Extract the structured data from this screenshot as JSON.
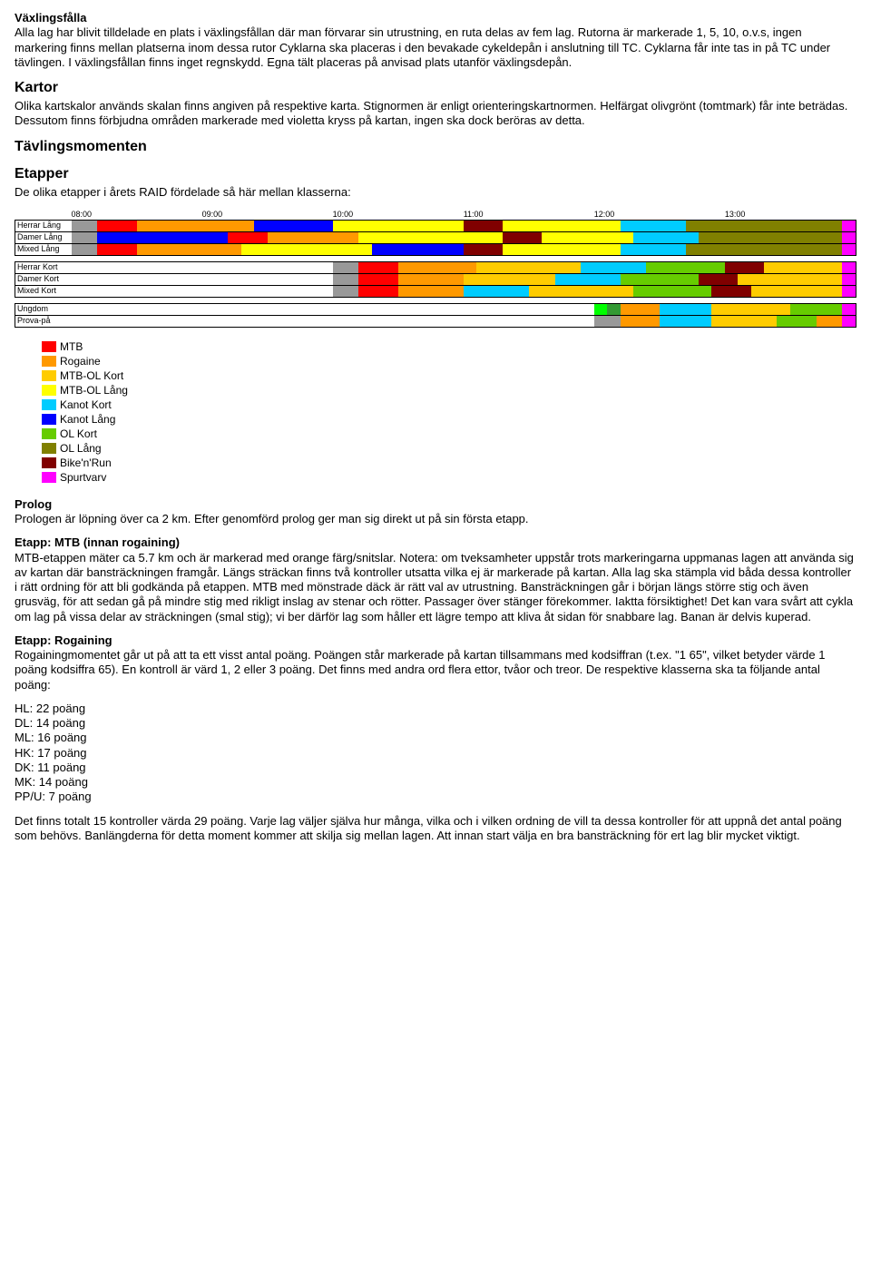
{
  "colors": {
    "mtb": "#ff0000",
    "rogaine": "#ff9900",
    "mtb_ol_kort": "#ffcc00",
    "mtb_ol_lang": "#ffff00",
    "kanot_kort": "#00ccff",
    "kanot_lang": "#0000ff",
    "ol_kort": "#66cc00",
    "ol_lang": "#808000",
    "bikenrun": "#800000",
    "spurtvarv": "#ff00ff",
    "prolog": "#999999",
    "empty": "#ffffff",
    "bright_green": "#00ff00",
    "ungdom_green": "#339933"
  },
  "sec_vaxling": {
    "title": "Växlingsfålla",
    "body": "Alla lag har blivit tilldelade en plats i växlingsfållan där man förvarar sin utrustning, en ruta delas av fem lag. Rutorna är markerade 1, 5, 10, o.v.s, ingen markering finns mellan platserna inom dessa rutor Cyklarna ska placeras i den bevakade cykeldepån i anslutning till TC. Cyklarna får inte tas in på TC under tävlingen. I växlingsfållan finns inget regnskydd. Egna tält placeras på anvisad plats utanför växlingsdepån."
  },
  "sec_kartor": {
    "title": "Kartor",
    "body": "Olika kartskalor används skalan finns angiven på respektive karta. Stignormen är enligt orienteringskartnormen. Helfärgat olivgrönt (tomtmark) får inte beträdas. Dessutom finns förbjudna områden markerade med violetta kryss på kartan, ingen ska dock beröras av detta."
  },
  "sec_moment": {
    "title": "Tävlingsmomenten"
  },
  "sec_etapper": {
    "title": "Etapper",
    "intro": "De olika etapper i årets RAID fördelade så här mellan klasserna:"
  },
  "timeline": {
    "header_slots": 60,
    "tick_labels": [
      "08:00",
      "09:00",
      "10:00",
      "11:00",
      "12:00",
      "13:00"
    ],
    "tick_positions": [
      0,
      10,
      20,
      30,
      40,
      50
    ],
    "groups": [
      {
        "rows": [
          {
            "label": "Herrar Lång",
            "segments": [
              {
                "color": "prolog",
                "span": 2
              },
              {
                "color": "mtb",
                "span": 3
              },
              {
                "color": "rogaine",
                "span": 9
              },
              {
                "color": "kanot_lang",
                "span": 6
              },
              {
                "color": "mtb_ol_lang",
                "span": 10
              },
              {
                "color": "bikenrun",
                "span": 3
              },
              {
                "color": "mtb_ol_lang",
                "span": 9
              },
              {
                "color": "kanot_kort",
                "span": 5
              },
              {
                "color": "ol_lang",
                "span": 12
              },
              {
                "color": "spurtvarv",
                "span": 1
              }
            ]
          },
          {
            "label": "Damer Lång",
            "segments": [
              {
                "color": "prolog",
                "span": 2
              },
              {
                "color": "kanot_lang",
                "span": 10
              },
              {
                "color": "mtb",
                "span": 3
              },
              {
                "color": "rogaine",
                "span": 7
              },
              {
                "color": "mtb_ol_lang",
                "span": 11
              },
              {
                "color": "bikenrun",
                "span": 3
              },
              {
                "color": "mtb_ol_lang",
                "span": 7
              },
              {
                "color": "kanot_kort",
                "span": 5
              },
              {
                "color": "ol_lang",
                "span": 11
              },
              {
                "color": "spurtvarv",
                "span": 1
              }
            ]
          },
          {
            "label": "Mixed Lång",
            "segments": [
              {
                "color": "prolog",
                "span": 2
              },
              {
                "color": "mtb",
                "span": 3
              },
              {
                "color": "rogaine",
                "span": 8
              },
              {
                "color": "mtb_ol_lang",
                "span": 10
              },
              {
                "color": "kanot_lang",
                "span": 7
              },
              {
                "color": "bikenrun",
                "span": 3
              },
              {
                "color": "mtb_ol_lang",
                "span": 9
              },
              {
                "color": "kanot_kort",
                "span": 5
              },
              {
                "color": "ol_lang",
                "span": 12
              },
              {
                "color": "spurtvarv",
                "span": 1
              }
            ]
          }
        ]
      },
      {
        "rows": [
          {
            "label": "Herrar Kort",
            "segments": [
              {
                "color": "empty",
                "span": 20
              },
              {
                "color": "prolog",
                "span": 2
              },
              {
                "color": "mtb",
                "span": 3
              },
              {
                "color": "rogaine",
                "span": 6
              },
              {
                "color": "mtb_ol_kort",
                "span": 8
              },
              {
                "color": "kanot_kort",
                "span": 5
              },
              {
                "color": "ol_kort",
                "span": 6
              },
              {
                "color": "bikenrun",
                "span": 3
              },
              {
                "color": "mtb_ol_kort",
                "span": 6
              },
              {
                "color": "spurtvarv",
                "span": 1
              }
            ]
          },
          {
            "label": "Damer Kort",
            "segments": [
              {
                "color": "empty",
                "span": 20
              },
              {
                "color": "prolog",
                "span": 2
              },
              {
                "color": "mtb",
                "span": 3
              },
              {
                "color": "rogaine",
                "span": 5
              },
              {
                "color": "mtb_ol_kort",
                "span": 7
              },
              {
                "color": "kanot_kort",
                "span": 5
              },
              {
                "color": "ol_kort",
                "span": 6
              },
              {
                "color": "bikenrun",
                "span": 3
              },
              {
                "color": "mtb_ol_kort",
                "span": 8
              },
              {
                "color": "spurtvarv",
                "span": 1
              }
            ]
          },
          {
            "label": "Mixed Kort",
            "segments": [
              {
                "color": "empty",
                "span": 20
              },
              {
                "color": "prolog",
                "span": 2
              },
              {
                "color": "mtb",
                "span": 3
              },
              {
                "color": "rogaine",
                "span": 5
              },
              {
                "color": "kanot_kort",
                "span": 5
              },
              {
                "color": "mtb_ol_kort",
                "span": 8
              },
              {
                "color": "ol_kort",
                "span": 6
              },
              {
                "color": "bikenrun",
                "span": 3
              },
              {
                "color": "mtb_ol_kort",
                "span": 7
              },
              {
                "color": "spurtvarv",
                "span": 1
              }
            ]
          }
        ]
      },
      {
        "rows": [
          {
            "label": "Ungdom",
            "segments": [
              {
                "color": "empty",
                "span": 40
              },
              {
                "color": "bright_green",
                "span": 1
              },
              {
                "color": "ungdom_green",
                "span": 1
              },
              {
                "color": "rogaine",
                "span": 3
              },
              {
                "color": "kanot_kort",
                "span": 4
              },
              {
                "color": "mtb_ol_kort",
                "span": 6
              },
              {
                "color": "ol_kort",
                "span": 4
              },
              {
                "color": "spurtvarv",
                "span": 1
              }
            ]
          },
          {
            "label": "Prova-på",
            "segments": [
              {
                "color": "empty",
                "span": 40
              },
              {
                "color": "prolog",
                "span": 2
              },
              {
                "color": "rogaine",
                "span": 3
              },
              {
                "color": "kanot_kort",
                "span": 4
              },
              {
                "color": "mtb_ol_kort",
                "span": 5
              },
              {
                "color": "ol_kort",
                "span": 3
              },
              {
                "color": "rogaine",
                "span": 2
              },
              {
                "color": "spurtvarv",
                "span": 1
              }
            ]
          }
        ]
      }
    ]
  },
  "legend": [
    {
      "color": "mtb",
      "label": "MTB"
    },
    {
      "color": "rogaine",
      "label": "Rogaine"
    },
    {
      "color": "mtb_ol_kort",
      "label": "MTB-OL Kort"
    },
    {
      "color": "mtb_ol_lang",
      "label": "MTB-OL Lång"
    },
    {
      "color": "kanot_kort",
      "label": "Kanot Kort"
    },
    {
      "color": "kanot_lang",
      "label": "Kanot Lång"
    },
    {
      "color": "ol_kort",
      "label": "OL Kort"
    },
    {
      "color": "ol_lang",
      "label": "OL Lång"
    },
    {
      "color": "bikenrun",
      "label": "Bike'n'Run"
    },
    {
      "color": "spurtvarv",
      "label": "Spurtvarv"
    }
  ],
  "sec_prolog": {
    "title": "Prolog",
    "body": "Prologen är löpning över ca 2 km. Efter genomförd prolog ger man sig direkt ut på sin första etapp."
  },
  "sec_mtb": {
    "title": "Etapp: MTB (innan rogaining)",
    "body": "MTB-etappen mäter ca 5.7 km och är markerad med orange färg/snitslar. Notera: om tveksamheter uppstår trots markeringarna uppmanas lagen att använda sig av kartan där bansträckningen framgår. Längs sträckan finns två kontroller utsatta vilka ej är markerade på kartan. Alla lag ska stämpla vid båda dessa kontroller i rätt ordning för att bli godkända på etappen. MTB med mönstrade däck är rätt val av utrustning. Bansträckningen går i början längs större stig och även grusväg, för att sedan gå på mindre stig med rikligt inslag av stenar och rötter. Passager över stänger förekommer. Iaktta försiktighet! Det kan vara svårt att cykla om lag på vissa delar av sträckningen (smal stig); vi ber därför lag som håller ett lägre tempo att kliva åt sidan för snabbare lag. Banan är delvis kuperad."
  },
  "sec_rogaining": {
    "title": "Etapp: Rogaining",
    "body": "Rogainingmomentet går ut på att ta ett visst antal poäng. Poängen står markerade på kartan tillsammans med kodsiffran (t.ex. \"1 65\", vilket betyder värde 1 poäng kodsiffra 65). En kontroll är värd 1, 2 eller 3 poäng. Det finns med andra ord flera ettor, tvåor och treor. De respektive klasserna ska ta följande antal poäng:",
    "points": [
      "HL: 22 poäng",
      "DL: 14 poäng",
      "ML: 16 poäng",
      "HK: 17 poäng",
      "DK: 11 poäng",
      "MK: 14 poäng",
      "PP/U: 7 poäng"
    ],
    "footer": "Det finns totalt 15 kontroller värda 29 poäng. Varje lag väljer själva hur många, vilka och i vilken ordning de vill ta dessa kontroller för att uppnå det antal poäng som behövs. Banlängderna för detta moment kommer att skilja sig mellan lagen. Att innan start välja en bra bansträckning för ert lag blir mycket viktigt."
  }
}
